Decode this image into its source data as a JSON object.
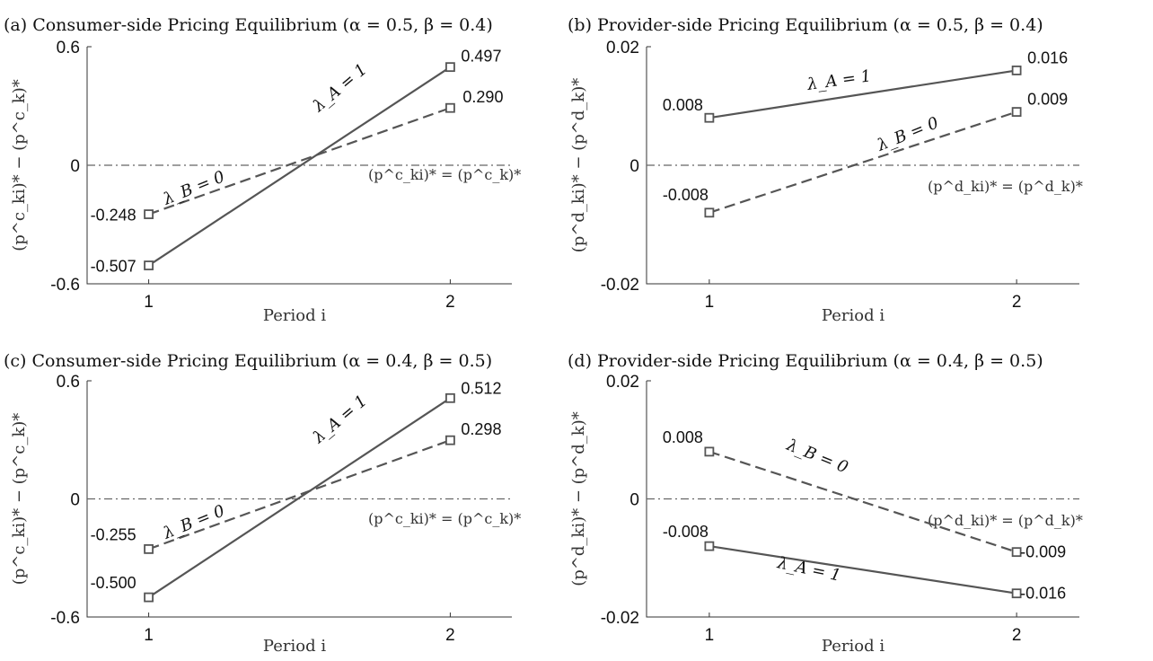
{
  "chart_data": [
    {
      "type": "line",
      "title": "(a) Consumer-side Pricing Equilibrium (α = 0.5, β = 0.4)",
      "xlabel": "Period i",
      "ylabel": "(p^c_ki)* − (p^c_k)*",
      "x": [
        1,
        2
      ],
      "xticks": [
        "1",
        "2"
      ],
      "ylim": [
        -0.6,
        0.6
      ],
      "yticks": [
        "-0.6",
        "0",
        "0.6"
      ],
      "reference_line": {
        "y": 0,
        "label": "(p^c_ki)* = (p^c_k)*",
        "style": "dash-dot"
      },
      "grid": false,
      "series": [
        {
          "name": "λ_A = 1",
          "style": "solid",
          "values": [
            -0.507,
            0.497
          ],
          "labels": [
            "-0.507",
            "0.497"
          ]
        },
        {
          "name": "λ_B = 0",
          "style": "dashed",
          "values": [
            -0.248,
            0.29
          ],
          "labels": [
            "-0.248",
            "0.290"
          ]
        }
      ]
    },
    {
      "type": "line",
      "title": "(b) Provider-side Pricing Equilibrium (α = 0.5, β = 0.4)",
      "xlabel": "Period i",
      "ylabel": "(p^d_ki)* − (p^d_k)*",
      "x": [
        1,
        2
      ],
      "xticks": [
        "1",
        "2"
      ],
      "ylim": [
        -0.02,
        0.02
      ],
      "yticks": [
        "-0.02",
        "0",
        "0.02"
      ],
      "reference_line": {
        "y": 0,
        "label": "(p^d_ki)* = (p^d_k)*",
        "style": "dash-dot"
      },
      "grid": false,
      "series": [
        {
          "name": "λ_A = 1",
          "style": "solid",
          "values": [
            0.008,
            0.016
          ],
          "labels": [
            "0.008",
            "0.016"
          ]
        },
        {
          "name": "λ_B = 0",
          "style": "dashed",
          "values": [
            -0.008,
            0.009
          ],
          "labels": [
            "-0.008",
            "0.009"
          ]
        }
      ]
    },
    {
      "type": "line",
      "title": "(c) Consumer-side Pricing Equilibrium (α = 0.4, β = 0.5)",
      "xlabel": "Period i",
      "ylabel": "(p^c_ki)* − (p^c_k)*",
      "x": [
        1,
        2
      ],
      "xticks": [
        "1",
        "2"
      ],
      "ylim": [
        -0.6,
        0.6
      ],
      "yticks": [
        "-0.6",
        "0",
        "0.6"
      ],
      "reference_line": {
        "y": 0,
        "label": "(p^c_ki)* = (p^c_k)*",
        "style": "dash-dot"
      },
      "grid": false,
      "series": [
        {
          "name": "λ_A = 1",
          "style": "solid",
          "values": [
            -0.5,
            0.512
          ],
          "labels": [
            "-0.500",
            "0.512"
          ]
        },
        {
          "name": "λ_B = 0",
          "style": "dashed",
          "values": [
            -0.255,
            0.298
          ],
          "labels": [
            "-0.255",
            "0.298"
          ]
        }
      ]
    },
    {
      "type": "line",
      "title": "(d) Provider-side Pricing Equilibrium (α = 0.4, β = 0.5)",
      "xlabel": "Period i",
      "ylabel": "(p^d_ki)* − (p^d_k)*",
      "x": [
        1,
        2
      ],
      "xticks": [
        "1",
        "2"
      ],
      "ylim": [
        -0.02,
        0.02
      ],
      "yticks": [
        "-0.02",
        "0",
        "0.02"
      ],
      "reference_line": {
        "y": 0,
        "label": "(p^d_ki)* = (p^d_k)*",
        "style": "dash-dot"
      },
      "grid": false,
      "series": [
        {
          "name": "λ_A = 1",
          "style": "solid",
          "values": [
            -0.008,
            -0.016
          ],
          "labels": [
            "-0.008",
            "-0.016"
          ]
        },
        {
          "name": "λ_B = 0",
          "style": "dashed",
          "values": [
            0.008,
            -0.009
          ],
          "labels": [
            "0.008",
            "-0.009"
          ]
        }
      ]
    }
  ],
  "colors": {
    "line": "#555555",
    "reference": "#666666",
    "axis": "#333333",
    "text": "#111111"
  }
}
